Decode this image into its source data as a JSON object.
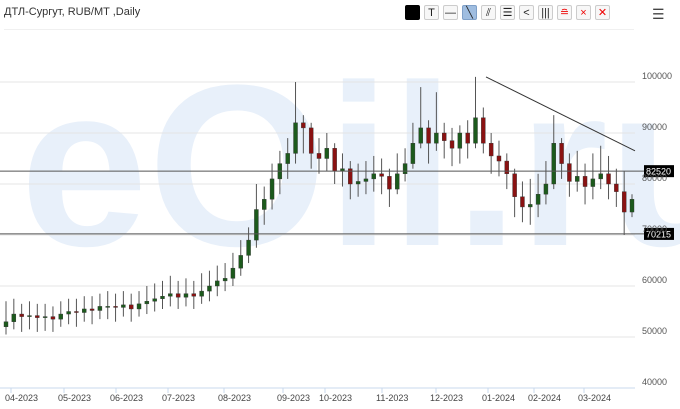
{
  "header": {
    "title": "ДТЛ-Сургут, RUB/MT ,Daily",
    "toolbar": [
      {
        "icon": "color-swatch-icon",
        "label": ""
      },
      {
        "icon": "text-tool-icon",
        "label": "T"
      },
      {
        "icon": "horizontal-line-icon",
        "label": "—"
      },
      {
        "icon": "trend-line-icon",
        "label": "╲"
      },
      {
        "icon": "parallel-channel-icon",
        "label": "⫽"
      },
      {
        "icon": "horizontal-lines-icon",
        "label": "☰"
      },
      {
        "icon": "fan-icon",
        "label": "<"
      },
      {
        "icon": "vertical-lines-icon",
        "label": "|||"
      },
      {
        "icon": "layers-icon",
        "label": "≘"
      },
      {
        "icon": "delete-icon",
        "label": "×"
      },
      {
        "icon": "delete-all-icon",
        "label": "✕"
      }
    ],
    "menu_icon": "hamburger-icon"
  },
  "watermark": "eOil.ru",
  "colors": {
    "up": "#1c5a1c",
    "down": "#8a1212",
    "wick": "#555555",
    "grid": "#e4e4e4",
    "axis": "#c8d8ec"
  },
  "chart_data": {
    "type": "candlestick",
    "title": "ДТЛ-Сургут, RUB/MT ,Daily",
    "ylim": [
      40000,
      100000
    ],
    "yticks": [
      "100000",
      "90000",
      "80000",
      "70000",
      "60000",
      "50000",
      "40000"
    ],
    "xticks": [
      "04-2023",
      "05-2023",
      "06-2023",
      "07-2023",
      "08-2023",
      "09-2023",
      "10-2023",
      "11-2023",
      "12-2023",
      "01-2024",
      "02-2024",
      "03-2024"
    ],
    "grid": true,
    "horizontal_levels": [
      {
        "value": 82520,
        "label": "82520"
      },
      {
        "value": 70215,
        "label": "70215"
      }
    ],
    "trendline": {
      "from_value": 101000,
      "to_value": 86500
    },
    "ohlc": [
      [
        52000,
        57000,
        50500,
        53000
      ],
      [
        53000,
        57500,
        51500,
        54500
      ],
      [
        54500,
        56500,
        51000,
        54000
      ],
      [
        54000,
        57000,
        51500,
        54200
      ],
      [
        54200,
        56500,
        51000,
        53800
      ],
      [
        53800,
        56500,
        51200,
        54000
      ],
      [
        54000,
        56000,
        51000,
        53500
      ],
      [
        53500,
        57000,
        52000,
        54500
      ],
      [
        54500,
        57500,
        52500,
        55000
      ],
      [
        55000,
        57500,
        52000,
        54800
      ],
      [
        54800,
        58000,
        53000,
        55500
      ],
      [
        55500,
        58000,
        52500,
        55200
      ],
      [
        55200,
        58500,
        53500,
        56000
      ],
      [
        56000,
        59000,
        53500,
        56000
      ],
      [
        56000,
        58500,
        53000,
        55800
      ],
      [
        55800,
        59000,
        54000,
        56300
      ],
      [
        56300,
        58500,
        53000,
        55500
      ],
      [
        55500,
        59000,
        54000,
        56500
      ],
      [
        56500,
        60000,
        54500,
        57000
      ],
      [
        57000,
        60500,
        55000,
        57500
      ],
      [
        57500,
        61000,
        55500,
        58000
      ],
      [
        58000,
        62000,
        56000,
        58500
      ],
      [
        58500,
        61000,
        55500,
        57800
      ],
      [
        57800,
        61500,
        56000,
        58500
      ],
      [
        58500,
        61000,
        55500,
        58000
      ],
      [
        58000,
        62500,
        56500,
        59000
      ],
      [
        59000,
        63000,
        57000,
        60000
      ],
      [
        60000,
        64000,
        58000,
        61000
      ],
      [
        61000,
        64500,
        59000,
        61500
      ],
      [
        61500,
        66500,
        60000,
        63500
      ],
      [
        63500,
        69000,
        62000,
        66000
      ],
      [
        66000,
        71500,
        64500,
        69000
      ],
      [
        69000,
        80000,
        67500,
        75000
      ],
      [
        75000,
        79500,
        72000,
        77000
      ],
      [
        77000,
        84000,
        75000,
        81000
      ],
      [
        81000,
        86500,
        78000,
        84000
      ],
      [
        84000,
        89000,
        81000,
        86000
      ],
      [
        86000,
        100000,
        84000,
        92000
      ],
      [
        92000,
        93500,
        86000,
        91000
      ],
      [
        91000,
        92000,
        83000,
        86000
      ],
      [
        86000,
        89000,
        82000,
        85000
      ],
      [
        85000,
        90000,
        82500,
        87000
      ],
      [
        87000,
        88000,
        80000,
        82500
      ],
      [
        82500,
        86000,
        79500,
        83000
      ],
      [
        83000,
        84500,
        77000,
        80000
      ],
      [
        80000,
        84000,
        77500,
        80500
      ],
      [
        80500,
        84500,
        78000,
        81000
      ],
      [
        81000,
        85500,
        78500,
        82000
      ],
      [
        82000,
        85000,
        78000,
        81500
      ],
      [
        81500,
        83000,
        75500,
        79000
      ],
      [
        79000,
        86000,
        78000,
        82000
      ],
      [
        82000,
        87000,
        80500,
        84000
      ],
      [
        84000,
        92000,
        83000,
        88000
      ],
      [
        88000,
        99000,
        87000,
        91000
      ],
      [
        91000,
        92500,
        84000,
        88000
      ],
      [
        88000,
        98000,
        86500,
        90000
      ],
      [
        90000,
        92000,
        85000,
        88500
      ],
      [
        88500,
        91000,
        83500,
        87000
      ],
      [
        87000,
        91500,
        84000,
        90000
      ],
      [
        90000,
        92500,
        85000,
        88000
      ],
      [
        88000,
        101000,
        87000,
        93000
      ],
      [
        93000,
        95000,
        86000,
        88000
      ],
      [
        88000,
        90000,
        82000,
        85500
      ],
      [
        85500,
        88500,
        81500,
        84500
      ],
      [
        84500,
        86000,
        79000,
        82000
      ],
      [
        82000,
        83000,
        73500,
        77500
      ],
      [
        77500,
        80500,
        72500,
        75500
      ],
      [
        75500,
        81000,
        72000,
        76000
      ],
      [
        76000,
        82000,
        73500,
        78000
      ],
      [
        78000,
        84500,
        76000,
        80000
      ],
      [
        80000,
        93500,
        79000,
        88000
      ],
      [
        88000,
        89000,
        81000,
        84000
      ],
      [
        84000,
        86000,
        77500,
        80500
      ],
      [
        80500,
        86500,
        78500,
        81500
      ],
      [
        81500,
        84000,
        76000,
        79500
      ],
      [
        79500,
        86000,
        77000,
        81000
      ],
      [
        81000,
        87500,
        79000,
        82000
      ],
      [
        82000,
        85500,
        77000,
        80000
      ],
      [
        80000,
        83000,
        75500,
        78500
      ],
      [
        78500,
        82500,
        70000,
        74500
      ],
      [
        74500,
        78000,
        73500,
        77000
      ]
    ]
  }
}
